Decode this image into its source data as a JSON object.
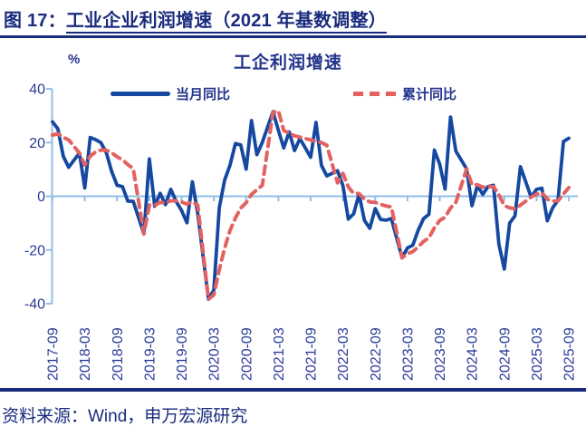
{
  "header": {
    "title_prefix": "图 17：",
    "title_main": "工业企业利润增速（2021 年基数调整）"
  },
  "footer": {
    "source": "资料来源：Wind，申万宏源研究"
  },
  "colors": {
    "navy_text": "#1A2B7D",
    "tick_text": "#2B3A98",
    "axis_light_blue": "#92BEE8",
    "series_monthly_blue": "#1548A0",
    "series_cumulative_red": "#E36161"
  },
  "chart_data": {
    "type": "line",
    "title": "工企利润增速",
    "ylabel": "%",
    "ylim": [
      -40,
      40
    ],
    "y_ticks": [
      40,
      20,
      0,
      -20,
      -40
    ],
    "x_tick_labels": [
      "2017-09",
      "2018-03",
      "2018-09",
      "2019-03",
      "2019-09",
      "2020-03",
      "2020-09",
      "2021-03",
      "2021-09",
      "2022-03",
      "2022-09",
      "2023-03",
      "2023-09",
      "2024-03",
      "2024-09",
      "2025-03",
      "2025-09"
    ],
    "x_start_month": "2017-09",
    "x_end_month": "2025-09",
    "grid": "zero baseline only, light blue, ticks every 6 months",
    "legend_position": "top",
    "series": [
      {
        "name": "当月同比",
        "line_style": "solid",
        "color": "#1548A0",
        "points": [
          [
            "2017-09",
            27.7
          ],
          [
            "2017-10",
            25.1
          ],
          [
            "2017-11",
            14.9
          ],
          [
            "2017-12",
            10.8
          ],
          [
            "2018-02",
            16.1
          ],
          [
            "2018-03",
            3.1
          ],
          [
            "2018-04",
            21.9
          ],
          [
            "2018-05",
            21.1
          ],
          [
            "2018-06",
            20.0
          ],
          [
            "2018-07",
            16.2
          ],
          [
            "2018-08",
            9.2
          ],
          [
            "2018-09",
            4.1
          ],
          [
            "2018-10",
            3.6
          ],
          [
            "2018-11",
            -1.8
          ],
          [
            "2018-12",
            -1.9
          ],
          [
            "2019-02",
            -14.0
          ],
          [
            "2019-03",
            13.9
          ],
          [
            "2019-04",
            -3.7
          ],
          [
            "2019-05",
            1.1
          ],
          [
            "2019-06",
            -3.1
          ],
          [
            "2019-07",
            2.6
          ],
          [
            "2019-08",
            -2.0
          ],
          [
            "2019-09",
            -5.3
          ],
          [
            "2019-10",
            -9.9
          ],
          [
            "2019-11",
            5.4
          ],
          [
            "2019-12",
            -6.3
          ],
          [
            "2020-02",
            -38.3
          ],
          [
            "2020-03",
            -34.9
          ],
          [
            "2020-04",
            -4.3
          ],
          [
            "2020-05",
            6.0
          ],
          [
            "2020-06",
            11.5
          ],
          [
            "2020-07",
            19.6
          ],
          [
            "2020-08",
            19.1
          ],
          [
            "2020-09",
            10.1
          ],
          [
            "2020-10",
            28.2
          ],
          [
            "2020-11",
            15.5
          ],
          [
            "2020-12",
            20.1
          ],
          [
            "2021-02",
            31.5
          ],
          [
            "2021-03",
            24.5
          ],
          [
            "2021-04",
            18.0
          ],
          [
            "2021-05",
            24.0
          ],
          [
            "2021-06",
            17.0
          ],
          [
            "2021-07",
            21.5
          ],
          [
            "2021-08",
            18.0
          ],
          [
            "2021-09",
            14.5
          ],
          [
            "2021-10",
            27.5
          ],
          [
            "2021-11",
            11.5
          ],
          [
            "2021-12",
            7.6
          ],
          [
            "2022-02",
            9.5
          ],
          [
            "2022-03",
            4.0
          ],
          [
            "2022-04",
            -8.5
          ],
          [
            "2022-05",
            -6.5
          ],
          [
            "2022-06",
            0.8
          ],
          [
            "2022-07",
            -9.0
          ],
          [
            "2022-08",
            -11.9
          ],
          [
            "2022-09",
            -4.6
          ],
          [
            "2022-10",
            -8.6
          ],
          [
            "2022-11",
            -8.9
          ],
          [
            "2022-12",
            -8.3
          ],
          [
            "2023-02",
            -22.9
          ],
          [
            "2023-03",
            -19.2
          ],
          [
            "2023-04",
            -18.2
          ],
          [
            "2023-05",
            -12.6
          ],
          [
            "2023-06",
            -8.3
          ],
          [
            "2023-07",
            -6.7
          ],
          [
            "2023-08",
            17.2
          ],
          [
            "2023-09",
            11.9
          ],
          [
            "2023-10",
            2.7
          ],
          [
            "2023-11",
            29.5
          ],
          [
            "2023-12",
            16.8
          ],
          [
            "2024-02",
            10.2
          ],
          [
            "2024-03",
            -3.5
          ],
          [
            "2024-04",
            4.0
          ],
          [
            "2024-05",
            0.7
          ],
          [
            "2024-06",
            3.6
          ],
          [
            "2024-07",
            4.1
          ],
          [
            "2024-08",
            -17.8
          ],
          [
            "2024-09",
            -27.1
          ],
          [
            "2024-10",
            -10.0
          ],
          [
            "2024-11",
            -7.3
          ],
          [
            "2024-12",
            11.0
          ],
          [
            "2025-02",
            -0.3
          ],
          [
            "2025-03",
            2.6
          ],
          [
            "2025-04",
            3.0
          ],
          [
            "2025-05",
            -9.1
          ],
          [
            "2025-06",
            -4.3
          ],
          [
            "2025-07",
            -1.5
          ],
          [
            "2025-08",
            20.4
          ],
          [
            "2025-09",
            21.6
          ]
        ]
      },
      {
        "name": "累计同比",
        "line_style": "dashed",
        "color": "#E36161",
        "points": [
          [
            "2017-09",
            22.8
          ],
          [
            "2017-10",
            23.3
          ],
          [
            "2017-11",
            21.9
          ],
          [
            "2017-12",
            21.0
          ],
          [
            "2018-02",
            16.1
          ],
          [
            "2018-03",
            11.6
          ],
          [
            "2018-04",
            15.0
          ],
          [
            "2018-05",
            16.5
          ],
          [
            "2018-06",
            17.2
          ],
          [
            "2018-07",
            17.1
          ],
          [
            "2018-08",
            16.2
          ],
          [
            "2018-09",
            14.7
          ],
          [
            "2018-10",
            13.6
          ],
          [
            "2018-11",
            11.8
          ],
          [
            "2018-12",
            10.3
          ],
          [
            "2019-02",
            -14.0
          ],
          [
            "2019-03",
            -3.3
          ],
          [
            "2019-04",
            -3.4
          ],
          [
            "2019-05",
            -2.3
          ],
          [
            "2019-06",
            -2.4
          ],
          [
            "2019-07",
            -1.7
          ],
          [
            "2019-08",
            -1.7
          ],
          [
            "2019-09",
            -2.1
          ],
          [
            "2019-10",
            -2.9
          ],
          [
            "2019-11",
            -2.1
          ],
          [
            "2019-12",
            -3.3
          ],
          [
            "2020-02",
            -38.3
          ],
          [
            "2020-03",
            -36.7
          ],
          [
            "2020-04",
            -27.4
          ],
          [
            "2020-05",
            -19.3
          ],
          [
            "2020-06",
            -12.8
          ],
          [
            "2020-07",
            -8.1
          ],
          [
            "2020-08",
            -4.4
          ],
          [
            "2020-09",
            -2.4
          ],
          [
            "2020-10",
            0.7
          ],
          [
            "2020-11",
            2.4
          ],
          [
            "2020-12",
            4.1
          ],
          [
            "2021-02",
            31.2
          ],
          [
            "2021-03",
            31.8
          ],
          [
            "2021-04",
            24.5
          ],
          [
            "2021-05",
            23.5
          ],
          [
            "2021-06",
            22.5
          ],
          [
            "2021-07",
            22.0
          ],
          [
            "2021-08",
            21.5
          ],
          [
            "2021-09",
            21.0
          ],
          [
            "2021-10",
            20.5
          ],
          [
            "2021-11",
            20.0
          ],
          [
            "2021-12",
            19.0
          ],
          [
            "2022-02",
            5.0
          ],
          [
            "2022-03",
            8.5
          ],
          [
            "2022-04",
            3.5
          ],
          [
            "2022-05",
            1.0
          ],
          [
            "2022-06",
            1.0
          ],
          [
            "2022-07",
            -1.1
          ],
          [
            "2022-08",
            -2.1
          ],
          [
            "2022-09",
            -2.3
          ],
          [
            "2022-10",
            -3.0
          ],
          [
            "2022-11",
            -3.6
          ],
          [
            "2022-12",
            -4.0
          ],
          [
            "2023-02",
            -22.9
          ],
          [
            "2023-03",
            -21.4
          ],
          [
            "2023-04",
            -20.6
          ],
          [
            "2023-05",
            -18.8
          ],
          [
            "2023-06",
            -16.8
          ],
          [
            "2023-07",
            -15.5
          ],
          [
            "2023-08",
            -11.7
          ],
          [
            "2023-09",
            -9.0
          ],
          [
            "2023-10",
            -7.8
          ],
          [
            "2023-11",
            -4.4
          ],
          [
            "2023-12",
            -2.3
          ],
          [
            "2024-02",
            10.2
          ],
          [
            "2024-03",
            4.3
          ],
          [
            "2024-04",
            4.3
          ],
          [
            "2024-05",
            3.4
          ],
          [
            "2024-06",
            3.5
          ],
          [
            "2024-07",
            3.6
          ],
          [
            "2024-08",
            0.5
          ],
          [
            "2024-09",
            -3.5
          ],
          [
            "2024-10",
            -4.3
          ],
          [
            "2024-11",
            -4.7
          ],
          [
            "2024-12",
            -3.3
          ],
          [
            "2025-02",
            -0.3
          ],
          [
            "2025-03",
            0.8
          ],
          [
            "2025-04",
            1.4
          ],
          [
            "2025-05",
            -1.1
          ],
          [
            "2025-06",
            -1.8
          ],
          [
            "2025-07",
            -1.7
          ],
          [
            "2025-08",
            0.9
          ],
          [
            "2025-09",
            3.2
          ]
        ]
      }
    ]
  }
}
